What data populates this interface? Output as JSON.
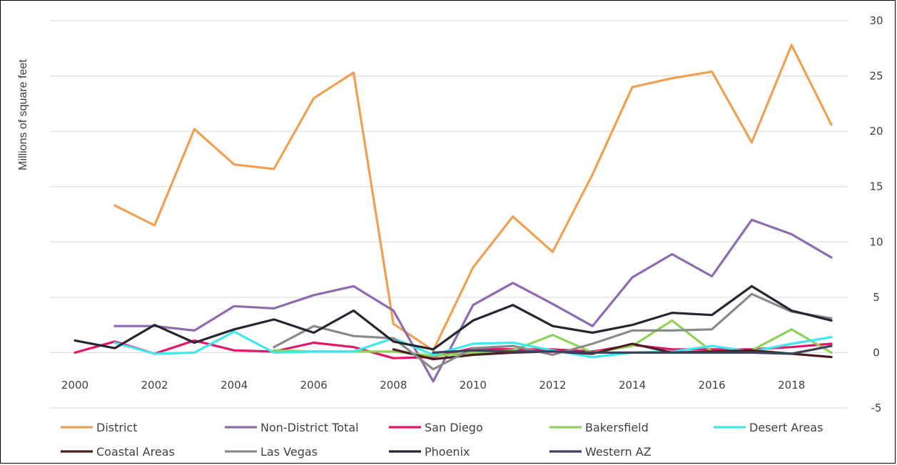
{
  "chart_data": {
    "type": "line",
    "xlabel": "",
    "ylabel": "Millions of square feet",
    "x": [
      2000,
      2001,
      2002,
      2003,
      2004,
      2005,
      2006,
      2007,
      2008,
      2009,
      2010,
      2011,
      2012,
      2013,
      2014,
      2015,
      2016,
      2017,
      2018,
      2019
    ],
    "x_ticks": [
      "2000",
      "2002",
      "2004",
      "2006",
      "2008",
      "2010",
      "2012",
      "2014",
      "2016",
      "2018"
    ],
    "y_ticks": [
      "-5",
      "0",
      "5",
      "10",
      "15",
      "20",
      "25",
      "30"
    ],
    "ylim": [
      -5,
      30
    ],
    "xlim": [
      2000,
      2019
    ],
    "y_axis_position": "right",
    "grid": "horizontal",
    "legend_position": "bottom",
    "series": [
      {
        "name": "District",
        "color": "#F0A050",
        "values": [
          null,
          13.3,
          11.5,
          20.2,
          17.0,
          16.6,
          23.0,
          25.3,
          2.6,
          0.2,
          7.7,
          12.3,
          9.1,
          16.1,
          24.0,
          24.8,
          25.4,
          19.0,
          27.8,
          20.6
        ]
      },
      {
        "name": "Non-District Total",
        "color": "#8E6BB0",
        "values": [
          null,
          2.4,
          2.4,
          2.0,
          4.2,
          4.0,
          5.2,
          6.0,
          3.8,
          -2.6,
          4.3,
          6.3,
          4.4,
          2.4,
          6.8,
          8.9,
          6.9,
          12.0,
          10.7,
          8.6
        ]
      },
      {
        "name": "San Diego",
        "color": "#E5156A",
        "values": [
          0.0,
          1.0,
          -0.1,
          1.1,
          0.2,
          0.1,
          0.9,
          0.5,
          -0.5,
          -0.4,
          0.4,
          0.3,
          0.3,
          0.1,
          0.7,
          0.3,
          0.3,
          0.3,
          0.5,
          0.8
        ]
      },
      {
        "name": "Bakersfield",
        "color": "#8DD35A",
        "values": [
          null,
          null,
          null,
          null,
          null,
          0.2,
          0.1,
          0.1,
          0.1,
          -0.3,
          0.0,
          0.2,
          1.6,
          0.0,
          0.6,
          2.9,
          0.1,
          0.2,
          2.1,
          0.0
        ]
      },
      {
        "name": "Desert Areas",
        "color": "#3FE8EC",
        "values": [
          null,
          0.9,
          -0.1,
          0.0,
          1.9,
          0.0,
          0.1,
          0.1,
          1.3,
          -0.2,
          0.8,
          0.9,
          0.2,
          -0.4,
          0.0,
          0.1,
          0.6,
          0.1,
          0.8,
          1.4
        ]
      },
      {
        "name": "Coastal Areas",
        "color": "#4A1E1E",
        "values": [
          null,
          null,
          null,
          null,
          null,
          null,
          null,
          null,
          0.3,
          -0.6,
          -0.2,
          0.0,
          0.1,
          -0.1,
          0.8,
          0.0,
          0.1,
          0.2,
          -0.1,
          -0.4
        ]
      },
      {
        "name": "Las Vegas",
        "color": "#8A8A8A",
        "values": [
          null,
          null,
          null,
          null,
          null,
          0.5,
          2.4,
          1.5,
          1.3,
          -1.5,
          0.4,
          0.6,
          -0.2,
          0.8,
          2.0,
          2.0,
          2.1,
          5.3,
          3.7,
          3.1
        ]
      },
      {
        "name": "Phoenix",
        "color": "#262633",
        "values": [
          1.1,
          0.4,
          2.5,
          0.9,
          2.1,
          3.0,
          1.8,
          3.8,
          1.0,
          0.3,
          2.9,
          4.3,
          2.4,
          1.8,
          2.5,
          3.6,
          3.4,
          6.0,
          3.8,
          2.9
        ]
      },
      {
        "name": "Western AZ",
        "color": "#3F3F5F",
        "values": [
          null,
          null,
          null,
          null,
          null,
          null,
          null,
          null,
          null,
          0.0,
          0.2,
          0.1,
          0.1,
          0.0,
          0.0,
          0.0,
          0.0,
          0.0,
          -0.1,
          0.6
        ]
      }
    ]
  }
}
